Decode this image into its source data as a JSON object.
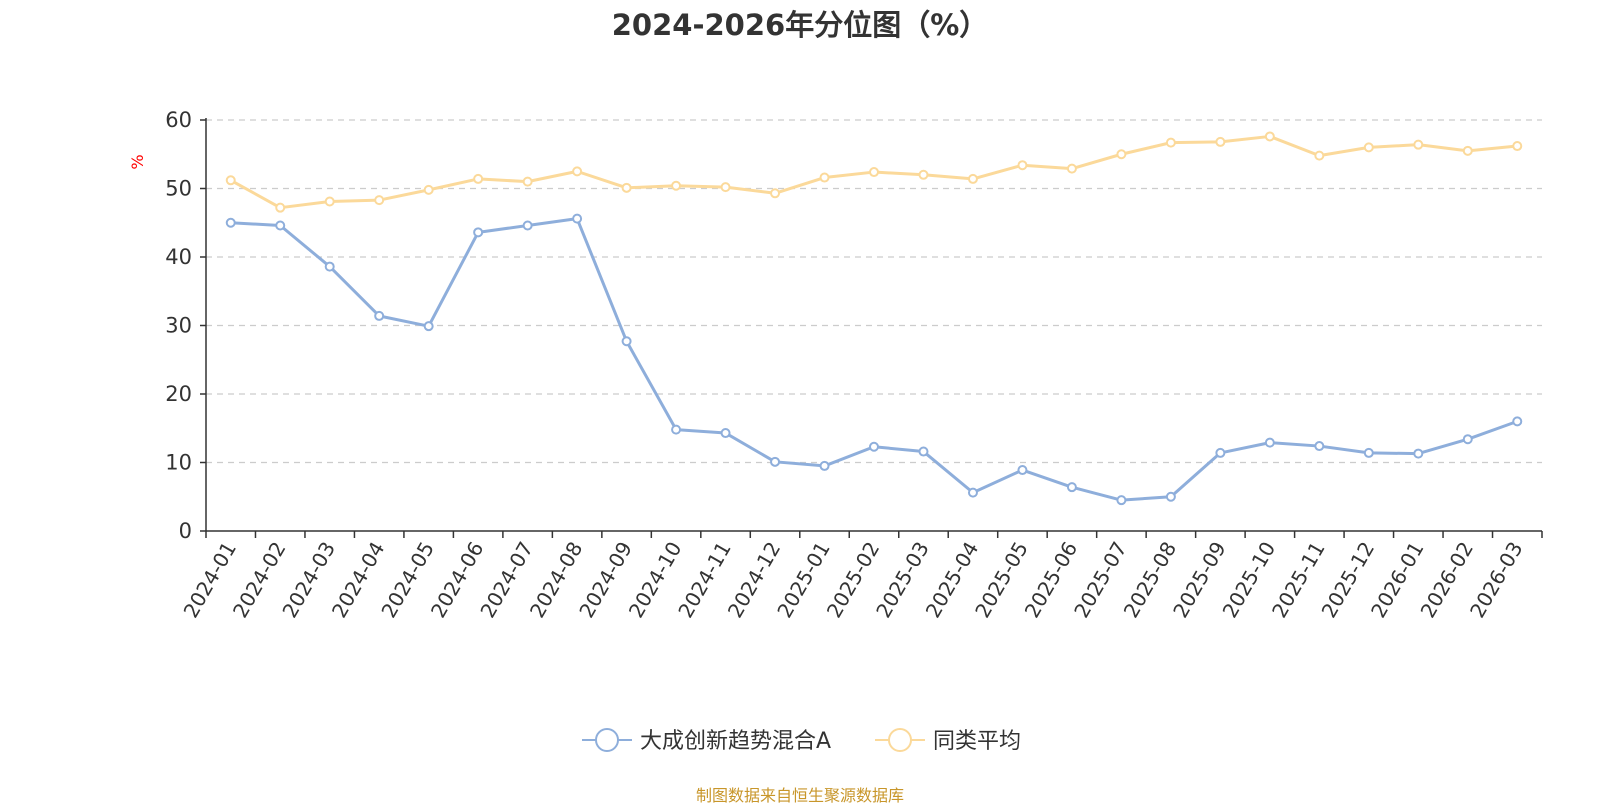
{
  "chart_data": {
    "type": "line",
    "title": "2024-2026年分位图（%）",
    "ylabel": "%",
    "xlabel": "",
    "ylim": [
      0,
      60
    ],
    "yticks": [
      0,
      10,
      20,
      30,
      40,
      50,
      60
    ],
    "grid": true,
    "legend_position": "bottom",
    "categories": [
      "2024-01",
      "2024-02",
      "2024-03",
      "2024-04",
      "2024-05",
      "2024-06",
      "2024-07",
      "2024-08",
      "2024-09",
      "2024-10",
      "2024-11",
      "2024-12",
      "2025-01",
      "2025-02",
      "2025-03",
      "2025-04",
      "2025-05",
      "2025-06",
      "2025-07",
      "2025-08",
      "2025-09",
      "2025-10",
      "2025-11",
      "2025-12",
      "2026-01",
      "2026-02",
      "2026-03"
    ],
    "series": [
      {
        "name": "大成创新趋势混合A",
        "color": "#8eaedb",
        "values": [
          45.0,
          44.6,
          38.6,
          31.4,
          29.9,
          43.6,
          44.6,
          45.6,
          27.7,
          14.8,
          14.3,
          10.1,
          9.5,
          12.3,
          11.6,
          5.6,
          8.9,
          6.4,
          4.5,
          5.0,
          11.4,
          12.9,
          12.4,
          11.4,
          11.3,
          13.4,
          16.0
        ]
      },
      {
        "name": "同类平均",
        "color": "#fbd99a",
        "values": [
          51.2,
          47.2,
          48.1,
          48.3,
          49.8,
          51.4,
          51.0,
          52.5,
          50.1,
          50.4,
          50.2,
          49.3,
          51.6,
          52.4,
          52.0,
          51.4,
          53.4,
          52.9,
          55.0,
          56.7,
          56.8,
          57.6,
          54.8,
          56.0,
          56.4,
          55.5,
          56.2
        ]
      }
    ]
  },
  "source_note": "制图数据来自恒生聚源数据库"
}
